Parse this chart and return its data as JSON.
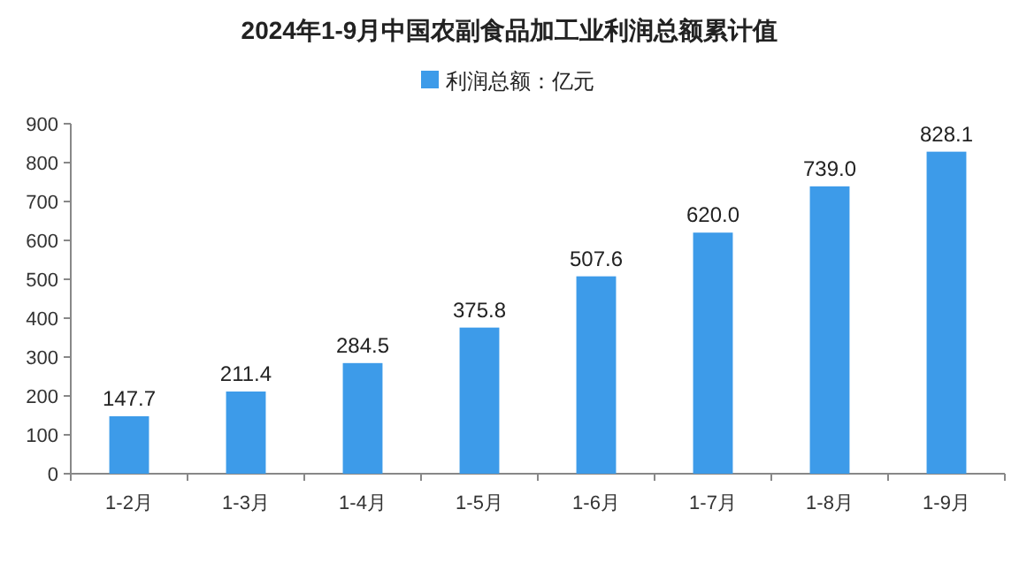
{
  "chart_data": {
    "type": "bar",
    "title": "2024年1-9月中国农副食品加工业利润总额累计值",
    "categories": [
      "1-2月",
      "1-3月",
      "1-4月",
      "1-5月",
      "1-6月",
      "1-7月",
      "1-8月",
      "1-9月"
    ],
    "series": [
      {
        "name": "利润总额：亿元",
        "color": "#3d9be9",
        "values": [
          147.7,
          211.4,
          284.5,
          375.8,
          507.6,
          620.0,
          739.0,
          828.1
        ]
      }
    ],
    "value_labels": [
      "147.7",
      "211.4",
      "284.5",
      "375.8",
      "507.6",
      "620.0",
      "739.0",
      "828.1"
    ],
    "ylim": [
      0,
      900
    ],
    "yticks": [
      0,
      100,
      200,
      300,
      400,
      500,
      600,
      700,
      800,
      900
    ],
    "legend": "top"
  }
}
